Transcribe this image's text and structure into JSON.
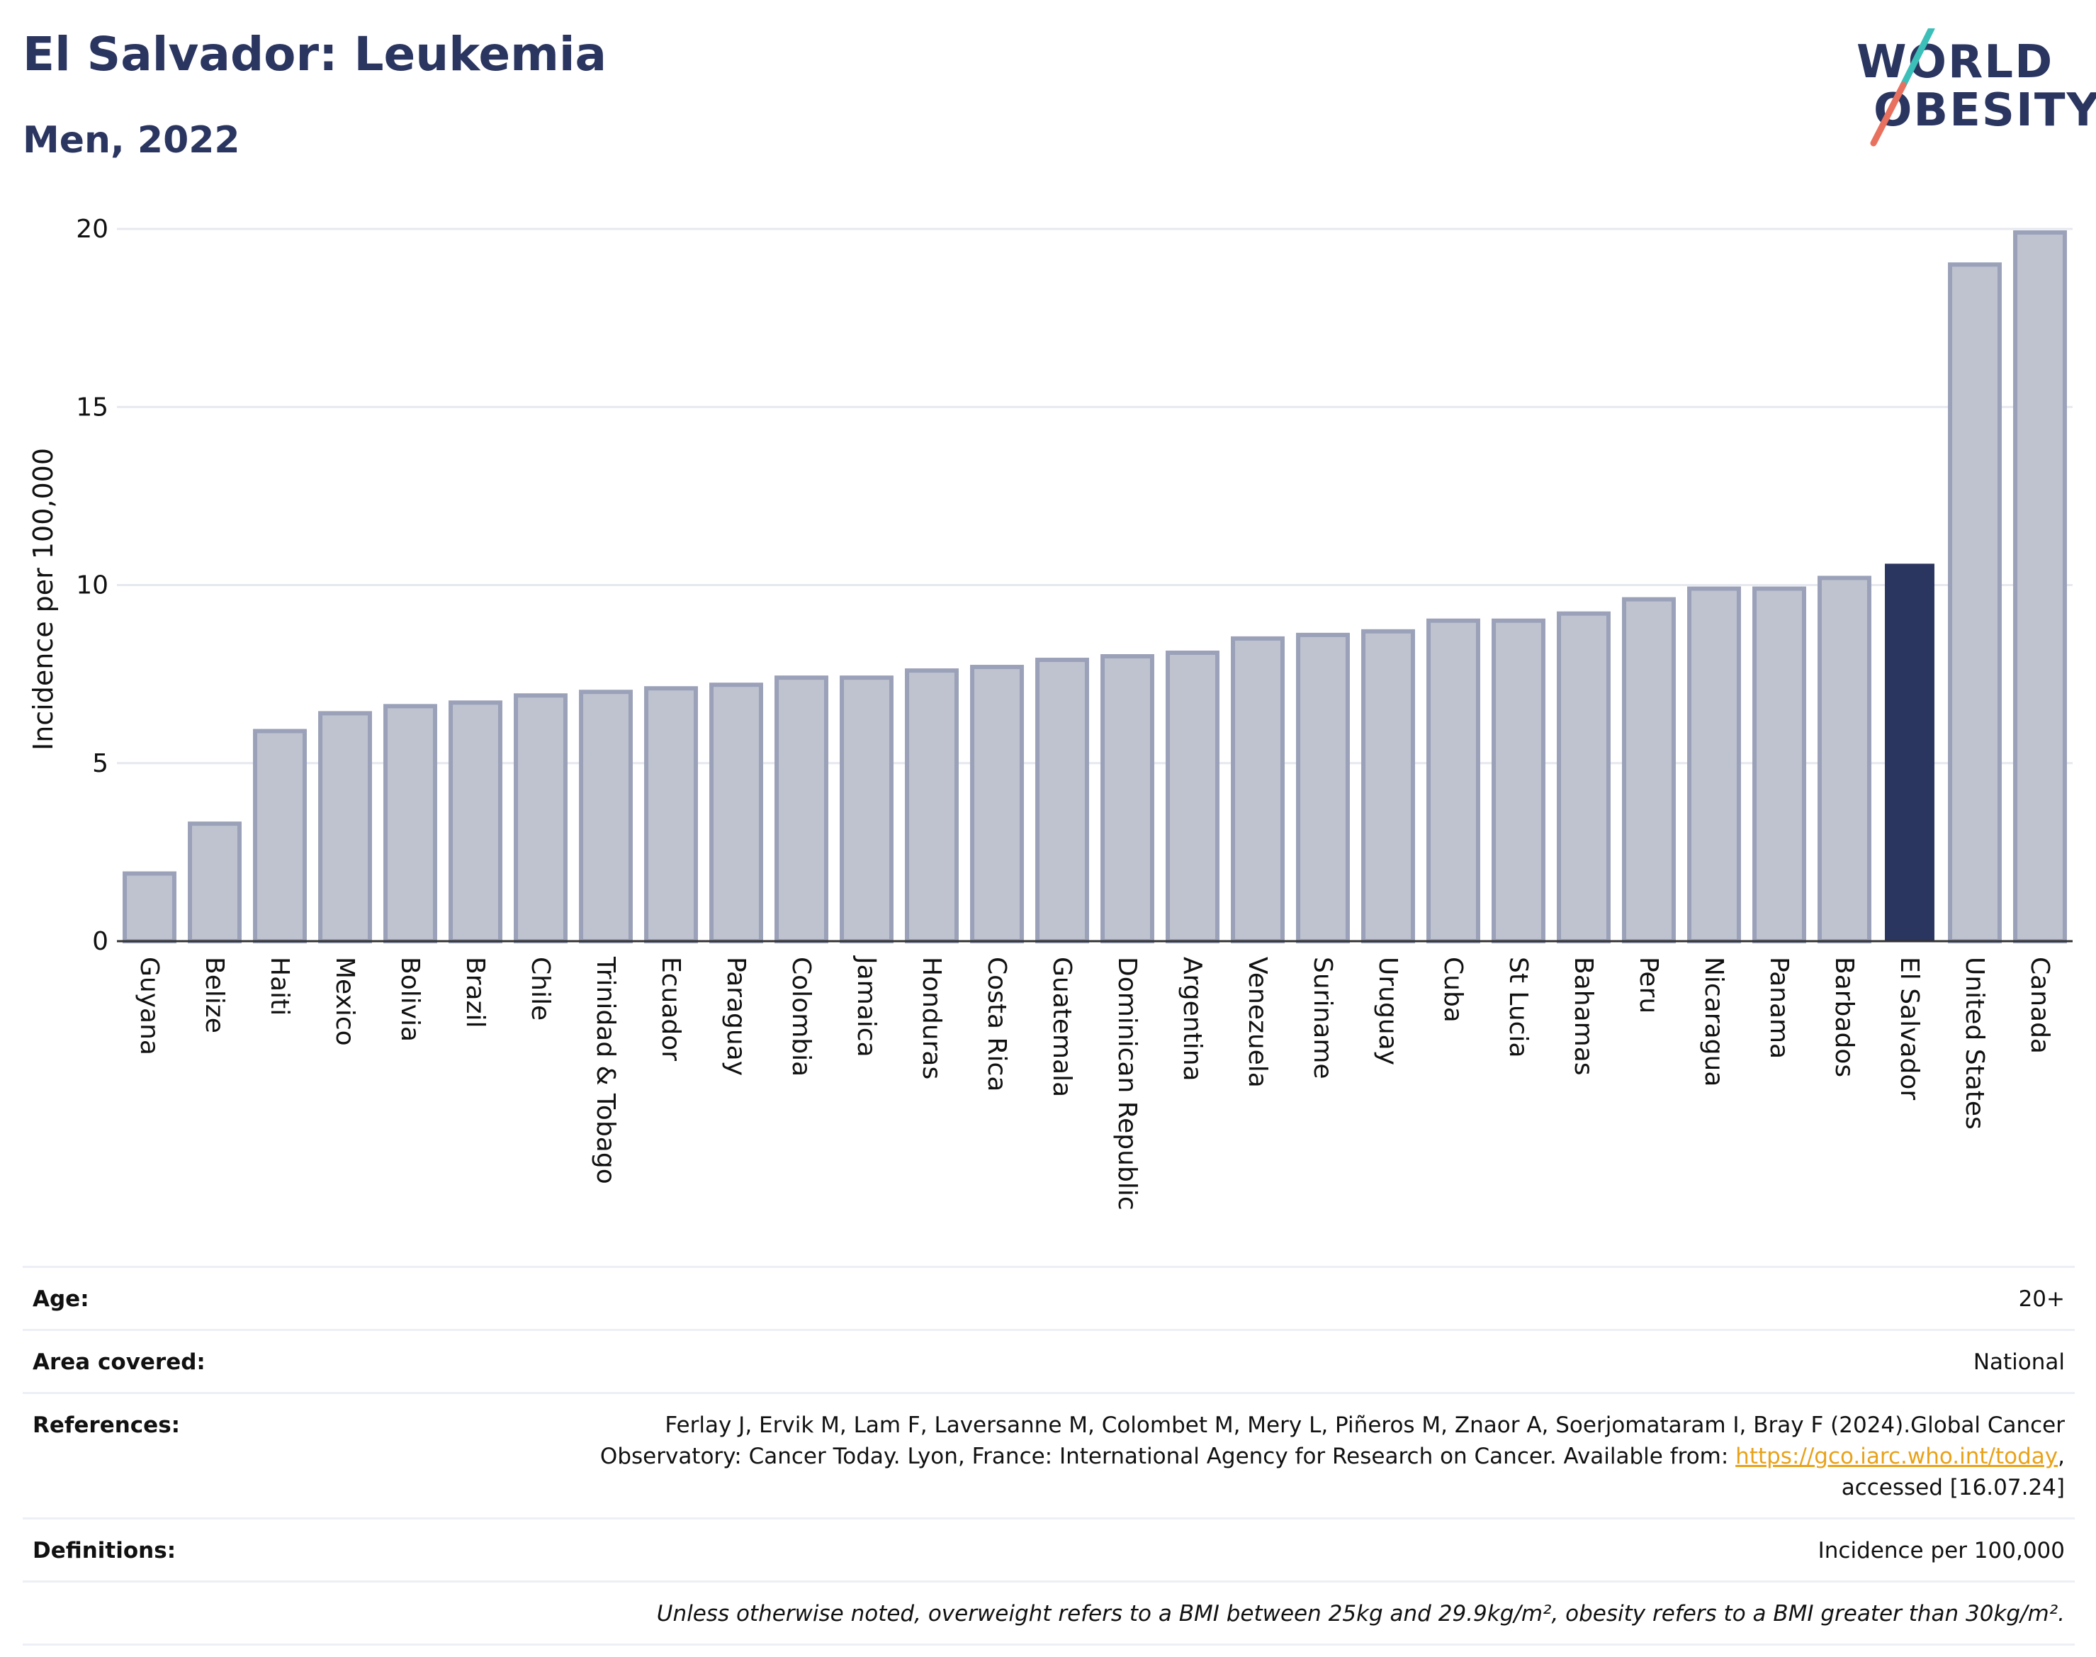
{
  "header": {
    "title": "El Salvador: Leukemia",
    "subtitle": "Men, 2022"
  },
  "logo": {
    "line1": "WORLD",
    "line2": "OBESITY"
  },
  "colors": {
    "bar_default": "#bfc3d0",
    "bar_border": "#9aa1b8",
    "bar_highlight": "#2a3560",
    "title": "#2a3560",
    "gridline": "#e6e8ef",
    "link": "#e8a21a",
    "logo_slash_top": "#3bbfb8",
    "logo_slash_bottom": "#e8705e"
  },
  "chart_data": {
    "type": "bar",
    "ylabel": "Incidence per 100,000",
    "ylim": [
      0,
      20
    ],
    "yticks": [
      0,
      5,
      10,
      15,
      20
    ],
    "grid": true,
    "highlight": "El Salvador",
    "categories": [
      "Guyana",
      "Belize",
      "Haiti",
      "Mexico",
      "Bolivia",
      "Brazil",
      "Chile",
      "Trinidad & Tobago",
      "Ecuador",
      "Paraguay",
      "Colombia",
      "Jamaica",
      "Honduras",
      "Costa Rica",
      "Guatemala",
      "Dominican Republic",
      "Argentina",
      "Venezuela",
      "Suriname",
      "Uruguay",
      "Cuba",
      "St Lucia",
      "Bahamas",
      "Peru",
      "Nicaragua",
      "Panama",
      "Barbados",
      "El Salvador",
      "United States",
      "Canada"
    ],
    "values": [
      1.9,
      3.3,
      5.9,
      6.4,
      6.6,
      6.7,
      6.9,
      7.0,
      7.1,
      7.2,
      7.4,
      7.4,
      7.6,
      7.7,
      7.9,
      8.0,
      8.1,
      8.5,
      8.6,
      8.7,
      9.0,
      9.0,
      9.2,
      9.6,
      9.9,
      9.9,
      10.2,
      10.6,
      19.0,
      19.9
    ]
  },
  "meta": {
    "age_label": "Age:",
    "age_value": "20+",
    "area_label": "Area covered:",
    "area_value": "National",
    "references_label": "References:",
    "references_text_1": "Ferlay J, Ervik M, Lam F, Laversanne M, Colombet M, Mery L, Piñeros M, Znaor A, Soerjomataram I, Bray F (2024).Global Cancer Observatory: Cancer Today. Lyon, France: International Agency for Research on Cancer. Available from: ",
    "references_link": "https://gco.iarc.who.int/today",
    "references_text_2": ", accessed [16.07.24]",
    "definitions_label": "Definitions:",
    "definitions_value": "Incidence per 100,000",
    "note": "Unless otherwise noted, overweight refers to a BMI between 25kg and 29.9kg/m², obesity refers to a BMI greater than 30kg/m²."
  }
}
